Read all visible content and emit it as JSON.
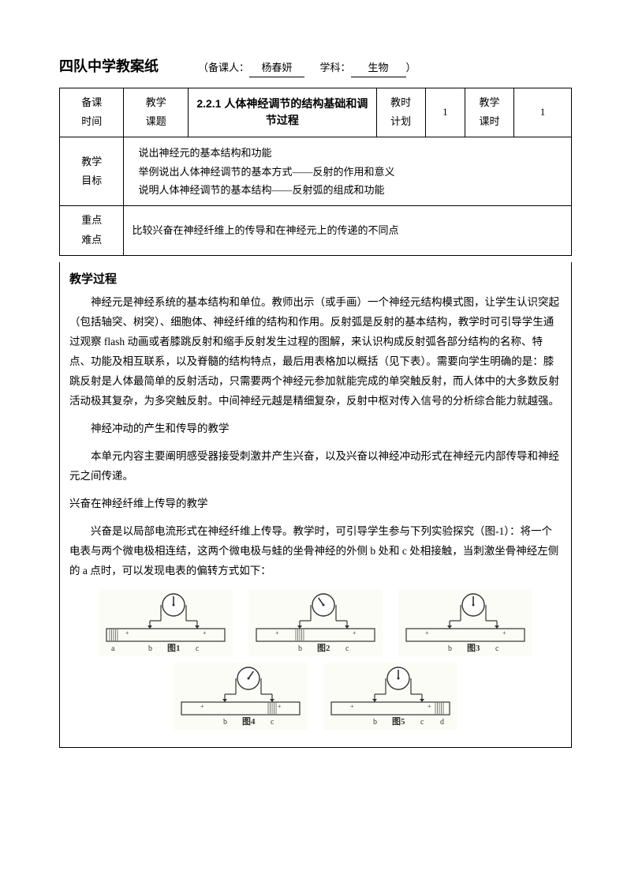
{
  "header": {
    "title": "四队中学教案纸",
    "preparer_label": "（备课人：",
    "preparer": "杨春妍",
    "subject_label": "学科：",
    "subject": "生物",
    "close": "）"
  },
  "info_table": {
    "row1": {
      "c1": "备课\n时间",
      "c2": "教学\n课题",
      "c3": "2.2.1 人体神经调节的结构基础和调节过程",
      "c4": "教时\n计划",
      "c5": "1",
      "c6": "教学\n课时",
      "c7": "1"
    },
    "row2": {
      "label": "教学\n目标",
      "content": "说出神经元的基本结构和功能\n举例说出人体神经调节的基本方式——反射的作用和意义\n说明人体神经调节的基本结构——反射弧的组成和功能"
    },
    "row3": {
      "label": "重点\n难点",
      "content": "比较兴奋在神经纤维上的传导和在神经元上的传递的不同点"
    }
  },
  "process": {
    "heading": "教学过程",
    "p1": "神经元是神经系统的基本结构和单位。教师出示（或手画）一个神经元结构模式图，让学生认识突起（包括轴突、树突）、细胞体、神经纤维的结构和作用。反射弧是反射的基本结构，教学时可引导学生通过观察 flash 动画或者膝跳反射和缩手反射发生过程的图解，来认识构成反射弧各部分结构的名称、特点、功能及相互联系，以及脊髓的结构特点，最后用表格加以概括（见下表）。需要向学生明确的是：膝跳反射是人体最简单的反射活动，只需要两个神经元参加就能完成的单突触反射，而人体中的大多数反射活动极其复杂，为多突触反射。中间神经元越是精细复杂，反射中枢对传入信号的分析综合能力就越强。",
    "p2": "神经冲动的产生和传导的教学",
    "p3": "本单元内容主要阐明感受器接受刺激并产生兴奋，以及兴奋以神经冲动形式在神经元内部传导和神经元之间传递。",
    "p4": "兴奋在神经纤维上传导的教学",
    "p5": "兴奋是以局部电流形式在神经纤维上传导。教学时，可引导学生参与下列实验探究（图-1）：将一个电表与两个微电极相连结，这两个微电极与蛙的坐骨神经的外侧 b 处和 c 处相接触，当刺激坐骨神经左侧的 a 点时，可以发现电表的偏转方式如下："
  },
  "diagrams": {
    "row1": [
      {
        "label": "图1",
        "left": "a",
        "mid": "b",
        "right": "c",
        "needle": 0,
        "shade_left": true
      },
      {
        "label": "图2",
        "left": "",
        "mid": "b",
        "right": "c",
        "needle": -35,
        "shade_mid": true
      },
      {
        "label": "图3",
        "left": "",
        "mid": "b",
        "right": "c",
        "needle": 0
      }
    ],
    "row2": [
      {
        "label": "图4",
        "left": "",
        "mid": "b",
        "right": "c",
        "needle": 35,
        "shade_right": true
      },
      {
        "label": "图5",
        "left": "",
        "mid": "b",
        "right": "c",
        "far": "d",
        "needle": 0,
        "shade_far": true
      }
    ],
    "colors": {
      "stroke": "#333333",
      "fill_bg": "#fdfdf8",
      "shade": "#7a7a76"
    }
  }
}
